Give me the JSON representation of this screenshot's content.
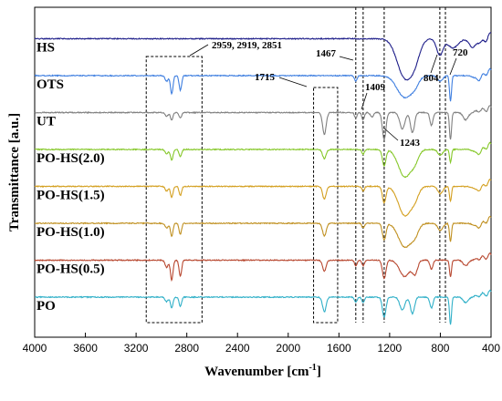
{
  "chart_data": {
    "type": "line",
    "xlabel": "Wavenumber [cm",
    "xlabel_sup": "-1",
    "xlabel_end": "]",
    "ylabel": "Transmittance [a.u.]",
    "xlim": [
      4000,
      400
    ],
    "x_reversed": true,
    "xticks": [
      4000,
      3600,
      3200,
      2800,
      2400,
      2000,
      1600,
      1200,
      800,
      400
    ],
    "grid": false,
    "series": [
      {
        "name": "HS",
        "color": "#1f1f8a",
        "offset": 7,
        "peaks": [
          [
            1080,
            42,
            60
          ],
          [
            1000,
            16,
            40
          ],
          [
            804,
            18,
            25
          ],
          [
            700,
            10,
            40
          ],
          [
            540,
            10,
            30
          ],
          [
            460,
            6,
            25
          ]
        ]
      },
      {
        "name": "OTS",
        "color": "#3f7fe0",
        "offset": 6,
        "peaks": [
          [
            2959,
            6,
            12
          ],
          [
            2919,
            20,
            10
          ],
          [
            2851,
            16,
            10
          ],
          [
            1467,
            6,
            10
          ],
          [
            1080,
            24,
            60
          ],
          [
            1000,
            6,
            30
          ],
          [
            800,
            6,
            20
          ],
          [
            720,
            28,
            8
          ],
          [
            500,
            6,
            30
          ]
        ]
      },
      {
        "name": "UT",
        "color": "#808080",
        "offset": 5,
        "peaks": [
          [
            2959,
            4,
            12
          ],
          [
            2919,
            8,
            10
          ],
          [
            2851,
            6,
            10
          ],
          [
            1715,
            24,
            14
          ],
          [
            1467,
            6,
            10
          ],
          [
            1409,
            8,
            10
          ],
          [
            1340,
            5,
            12
          ],
          [
            1243,
            30,
            14
          ],
          [
            1100,
            18,
            20
          ],
          [
            1020,
            22,
            16
          ],
          [
            870,
            14,
            12
          ],
          [
            720,
            30,
            8
          ],
          [
            600,
            8,
            20
          ]
        ]
      },
      {
        "name": "PO-HS(2.0)",
        "color": "#86c82a",
        "offset": 4,
        "peaks": [
          [
            2959,
            5,
            12
          ],
          [
            2919,
            12,
            10
          ],
          [
            2851,
            8,
            10
          ],
          [
            1715,
            10,
            14
          ],
          [
            1409,
            5,
            10
          ],
          [
            1243,
            18,
            14
          ],
          [
            1080,
            30,
            50
          ],
          [
            1000,
            10,
            30
          ],
          [
            800,
            6,
            20
          ],
          [
            720,
            14,
            8
          ],
          [
            500,
            6,
            30
          ]
        ]
      },
      {
        "name": "PO-HS(1.5)",
        "color": "#d4a020",
        "offset": 3,
        "peaks": [
          [
            2959,
            5,
            12
          ],
          [
            2919,
            12,
            10
          ],
          [
            2851,
            10,
            10
          ],
          [
            1715,
            14,
            14
          ],
          [
            1409,
            5,
            10
          ],
          [
            1243,
            18,
            14
          ],
          [
            1080,
            32,
            50
          ],
          [
            1000,
            10,
            30
          ],
          [
            800,
            8,
            20
          ],
          [
            720,
            16,
            8
          ],
          [
            500,
            6,
            30
          ]
        ]
      },
      {
        "name": "PO-HS(1.0)",
        "color": "#c09020",
        "offset": 2,
        "peaks": [
          [
            2959,
            5,
            12
          ],
          [
            2919,
            14,
            10
          ],
          [
            2851,
            12,
            10
          ],
          [
            1715,
            14,
            14
          ],
          [
            1409,
            5,
            10
          ],
          [
            1243,
            18,
            14
          ],
          [
            1080,
            26,
            50
          ],
          [
            1000,
            10,
            30
          ],
          [
            800,
            8,
            20
          ],
          [
            720,
            20,
            8
          ],
          [
            500,
            6,
            30
          ]
        ]
      },
      {
        "name": "PO-HS(0.5)",
        "color": "#b84830",
        "offset": 1,
        "peaks": [
          [
            2959,
            8,
            12
          ],
          [
            2919,
            22,
            10
          ],
          [
            2851,
            18,
            10
          ],
          [
            1715,
            12,
            14
          ],
          [
            1467,
            6,
            10
          ],
          [
            1409,
            6,
            10
          ],
          [
            1243,
            20,
            14
          ],
          [
            1080,
            18,
            40
          ],
          [
            1000,
            14,
            20
          ],
          [
            870,
            10,
            12
          ],
          [
            720,
            18,
            8
          ],
          [
            600,
            6,
            20
          ]
        ]
      },
      {
        "name": "PO",
        "color": "#30b0c8",
        "offset": 0,
        "peaks": [
          [
            2959,
            5,
            12
          ],
          [
            2919,
            12,
            10
          ],
          [
            2851,
            10,
            10
          ],
          [
            1715,
            16,
            14
          ],
          [
            1467,
            6,
            10
          ],
          [
            1409,
            6,
            10
          ],
          [
            1243,
            22,
            14
          ],
          [
            1100,
            14,
            20
          ],
          [
            1020,
            18,
            16
          ],
          [
            870,
            12,
            12
          ],
          [
            720,
            30,
            8
          ],
          [
            600,
            6,
            20
          ]
        ]
      }
    ],
    "annotations": [
      {
        "id": "ann-2959",
        "text": "2959, 2919, 2851",
        "range": [
          3120,
          2680
        ]
      },
      {
        "id": "ann-1715",
        "text": "1715",
        "range": [
          1800,
          1610
        ]
      },
      {
        "id": "ann-1467",
        "text": "1467",
        "at": 1467
      },
      {
        "id": "ann-1409",
        "text": "1409",
        "at": 1409
      },
      {
        "id": "ann-1243",
        "text": "1243",
        "at": 1243
      },
      {
        "id": "ann-804",
        "text": "804",
        "at": 804
      },
      {
        "id": "ann-720",
        "text": "720",
        "at": 760
      }
    ]
  }
}
